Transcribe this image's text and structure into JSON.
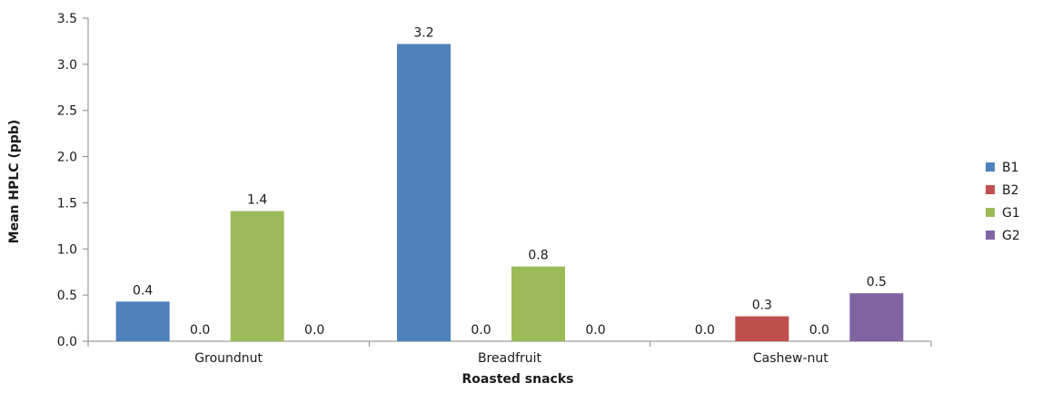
{
  "chart_data": {
    "type": "bar",
    "title": "",
    "xlabel": "Roasted snacks",
    "ylabel": "Mean HPLC (ppb)",
    "ylim": [
      0,
      3.5
    ],
    "yticks": [
      "0.0",
      "0.5",
      "1.0",
      "1.5",
      "2.0",
      "2.5",
      "3.0",
      "3.5"
    ],
    "categories": [
      "Groundnut",
      "Breadfruit",
      "Cashew-nut"
    ],
    "series": [
      {
        "name": "B1",
        "color": "#4f81bd",
        "values": [
          0.43,
          3.22,
          0.0
        ],
        "labels": [
          "0.4",
          "3.2",
          "0.0"
        ]
      },
      {
        "name": "B2",
        "color": "#c0504d",
        "values": [
          0.0,
          0.0,
          0.27
        ],
        "labels": [
          "0.0",
          "0.0",
          "0.3"
        ]
      },
      {
        "name": "G1",
        "color": "#9bbb59",
        "values": [
          1.41,
          0.81,
          0.0
        ],
        "labels": [
          "1.4",
          "0.8",
          "0.0"
        ]
      },
      {
        "name": "G2",
        "color": "#8064a2",
        "values": [
          0.0,
          0.0,
          0.52
        ],
        "labels": [
          "0.0",
          "0.0",
          "0.5"
        ]
      }
    ],
    "grid": false,
    "legend": "right"
  }
}
